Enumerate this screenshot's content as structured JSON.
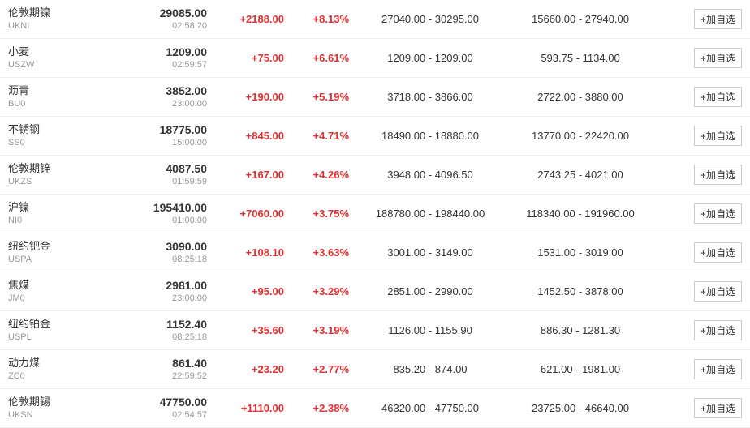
{
  "colors": {
    "positive": "#e03030",
    "text_primary": "#333333",
    "text_secondary": "#999999",
    "border": "#f0f0f0",
    "btn_border": "#cccccc",
    "background": "#ffffff"
  },
  "add_button_label": "+加自选",
  "rows": [
    {
      "name_cn": "伦敦期镍",
      "code": "UKNI",
      "price": "29085.00",
      "time": "02:58:20",
      "change": "+2188.00",
      "pct": "+8.13%",
      "day_range": "27040.00 - 30295.00",
      "year_range": "15660.00 - 27940.00"
    },
    {
      "name_cn": "小麦",
      "code": "USZW",
      "price": "1209.00",
      "time": "02:59:57",
      "change": "+75.00",
      "pct": "+6.61%",
      "day_range": "1209.00 - 1209.00",
      "year_range": "593.75 - 1134.00"
    },
    {
      "name_cn": "沥青",
      "code": "BU0",
      "price": "3852.00",
      "time": "23:00:00",
      "change": "+190.00",
      "pct": "+5.19%",
      "day_range": "3718.00 - 3866.00",
      "year_range": "2722.00 - 3880.00"
    },
    {
      "name_cn": "不锈钢",
      "code": "SS0",
      "price": "18775.00",
      "time": "15:00:00",
      "change": "+845.00",
      "pct": "+4.71%",
      "day_range": "18490.00 - 18880.00",
      "year_range": "13770.00 - 22420.00"
    },
    {
      "name_cn": "伦敦期锌",
      "code": "UKZS",
      "price": "4087.50",
      "time": "01:59:59",
      "change": "+167.00",
      "pct": "+4.26%",
      "day_range": "3948.00 - 4096.50",
      "year_range": "2743.25 - 4021.00"
    },
    {
      "name_cn": "沪镍",
      "code": "NI0",
      "price": "195410.00",
      "time": "01:00:00",
      "change": "+7060.00",
      "pct": "+3.75%",
      "day_range": "188780.00 - 198440.00",
      "year_range": "118340.00 - 191960.00"
    },
    {
      "name_cn": "纽约钯金",
      "code": "USPA",
      "price": "3090.00",
      "time": "08:25:18",
      "change": "+108.10",
      "pct": "+3.63%",
      "day_range": "3001.00 - 3149.00",
      "year_range": "1531.00 - 3019.00"
    },
    {
      "name_cn": "焦煤",
      "code": "JM0",
      "price": "2981.00",
      "time": "23:00:00",
      "change": "+95.00",
      "pct": "+3.29%",
      "day_range": "2851.00 - 2990.00",
      "year_range": "1452.50 - 3878.00"
    },
    {
      "name_cn": "纽约铂金",
      "code": "USPL",
      "price": "1152.40",
      "time": "08:25:18",
      "change": "+35.60",
      "pct": "+3.19%",
      "day_range": "1126.00 - 1155.90",
      "year_range": "886.30 - 1281.30"
    },
    {
      "name_cn": "动力煤",
      "code": "ZC0",
      "price": "861.40",
      "time": "22:59:52",
      "change": "+23.20",
      "pct": "+2.77%",
      "day_range": "835.20 - 874.00",
      "year_range": "621.00 - 1981.00"
    },
    {
      "name_cn": "伦敦期锡",
      "code": "UKSN",
      "price": "47750.00",
      "time": "02:54:57",
      "change": "+1110.00",
      "pct": "+2.38%",
      "day_range": "46320.00 - 47750.00",
      "year_range": "23725.00 - 46640.00"
    }
  ]
}
